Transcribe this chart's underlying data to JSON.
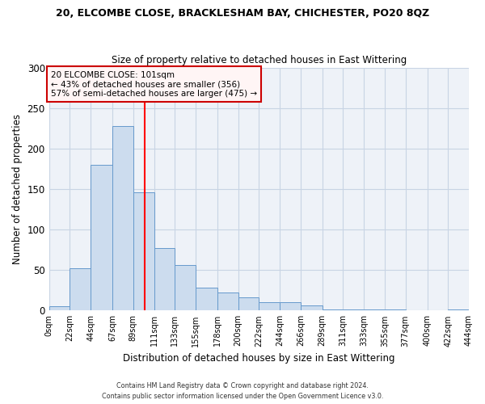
{
  "title": "20, ELCOMBE CLOSE, BRACKLESHAM BAY, CHICHESTER, PO20 8QZ",
  "subtitle": "Size of property relative to detached houses in East Wittering",
  "xlabel": "Distribution of detached houses by size in East Wittering",
  "ylabel": "Number of detached properties",
  "bin_labels": [
    "0sqm",
    "22sqm",
    "44sqm",
    "67sqm",
    "89sqm",
    "111sqm",
    "133sqm",
    "155sqm",
    "178sqm",
    "200sqm",
    "222sqm",
    "244sqm",
    "266sqm",
    "289sqm",
    "311sqm",
    "333sqm",
    "355sqm",
    "377sqm",
    "400sqm",
    "422sqm",
    "444sqm"
  ],
  "bin_edges": [
    0,
    22,
    44,
    67,
    89,
    111,
    133,
    155,
    178,
    200,
    222,
    244,
    266,
    289,
    311,
    333,
    355,
    377,
    400,
    422,
    444
  ],
  "bar_heights": [
    5,
    52,
    180,
    228,
    146,
    77,
    56,
    28,
    22,
    16,
    10,
    10,
    6,
    1,
    1,
    1,
    1,
    0,
    0,
    1
  ],
  "bar_color": "#ccdcee",
  "bar_edge_color": "#6699cc",
  "grid_color": "#c8d4e4",
  "background_color": "#eef2f8",
  "vline_x": 101,
  "vline_color": "red",
  "ylim": [
    0,
    300
  ],
  "yticks": [
    0,
    50,
    100,
    150,
    200,
    250,
    300
  ],
  "annotation_text": "20 ELCOMBE CLOSE: 101sqm\n← 43% of detached houses are smaller (356)\n57% of semi-detached houses are larger (475) →",
  "annotation_box_facecolor": "#fff5f5",
  "annotation_box_edgecolor": "#cc0000",
  "footer_line1": "Contains HM Land Registry data © Crown copyright and database right 2024.",
  "footer_line2": "Contains public sector information licensed under the Open Government Licence v3.0."
}
